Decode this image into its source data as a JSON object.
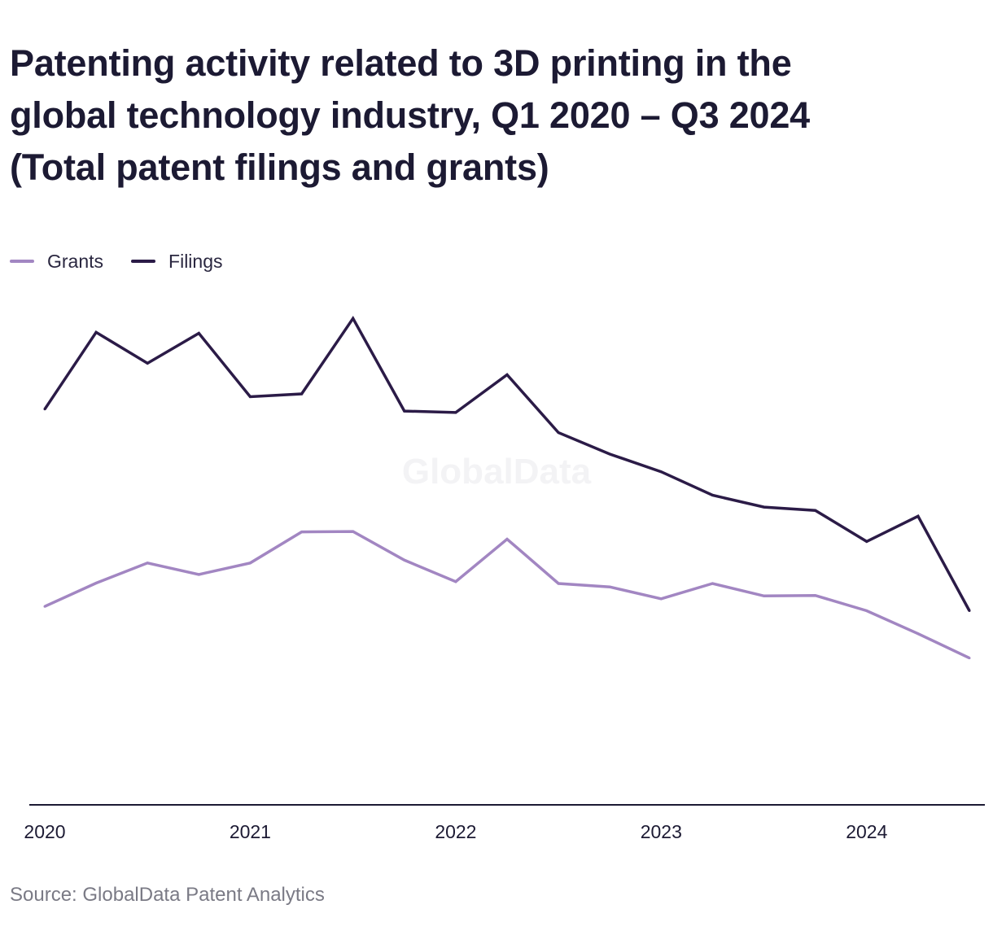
{
  "chart_data": {
    "type": "line",
    "title_lines": [
      "Patenting activity related to 3D printing in the",
      "global technology industry, Q1 2020 – Q3 2024",
      "(Total patent filings and grants)"
    ],
    "source": "Source: GlobalData Patent Analytics",
    "watermark": "GlobalData",
    "x": [
      "Q1 2020",
      "Q2 2020",
      "Q3 2020",
      "Q4 2020",
      "Q1 2021",
      "Q2 2021",
      "Q3 2021",
      "Q4 2021",
      "Q1 2022",
      "Q2 2022",
      "Q3 2022",
      "Q4 2022",
      "Q1 2023",
      "Q2 2023",
      "Q3 2023",
      "Q4 2023",
      "Q1 2024",
      "Q2 2024",
      "Q3 2024"
    ],
    "x_tick_labels": [
      "2020",
      "2021",
      "2022",
      "2023",
      "2024"
    ],
    "x_tick_indices": [
      0,
      4,
      8,
      12,
      16
    ],
    "y_axis_labels_shown": false,
    "ylim": [
      0,
      100
    ],
    "series": [
      {
        "name": "Grants",
        "color": "#a286c2",
        "values": [
          41.7,
          46.6,
          50.8,
          48.4,
          50.8,
          57.3,
          57.4,
          51.4,
          46.9,
          55.8,
          46.5,
          45.8,
          43.3,
          46.5,
          43.9,
          44.0,
          40.8,
          36.0,
          30.9
        ]
      },
      {
        "name": "Filings",
        "color": "#2b1b47",
        "values": [
          83.0,
          99.1,
          92.6,
          98.9,
          85.6,
          86.2,
          102.0,
          82.6,
          82.3,
          90.2,
          78.1,
          73.6,
          69.9,
          65.0,
          62.5,
          61.8,
          55.3,
          60.6,
          40.8
        ]
      }
    ],
    "legend_position": "top-left",
    "grid": false
  }
}
